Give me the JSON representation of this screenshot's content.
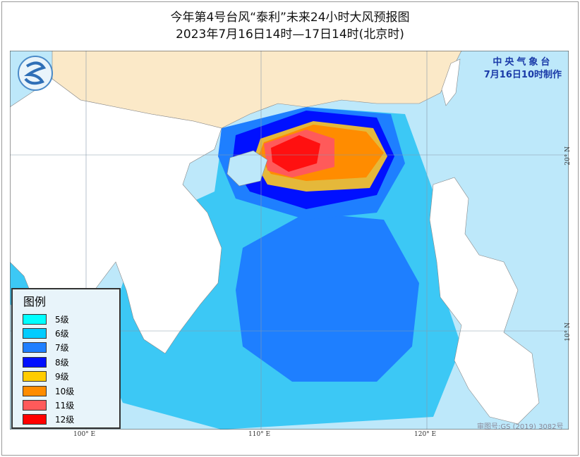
{
  "title": "今年第4号台风“泰利”未来24小时大风预报图",
  "subtitle": "2023年7月16日14时—17日14时(北京时)",
  "agency": {
    "name": "中央气象台",
    "issued": "7月16日10时制作"
  },
  "legend": {
    "title": "图例",
    "items": [
      {
        "label": "5级",
        "color": "#00ffff"
      },
      {
        "label": "6级",
        "color": "#00ccff"
      },
      {
        "label": "7级",
        "color": "#1e7fff"
      },
      {
        "label": "8级",
        "color": "#0010ff"
      },
      {
        "label": "9级",
        "color": "#ffcc00"
      },
      {
        "label": "10级",
        "color": "#ff8c00"
      },
      {
        "label": "11级",
        "color": "#ff5a5a"
      },
      {
        "label": "12级",
        "color": "#ff0000"
      }
    ]
  },
  "ticks": {
    "lon": [
      "100° E",
      "110° E",
      "120° E"
    ],
    "lat": [
      "20° N",
      "10° N"
    ]
  },
  "review_number": "审图号:GS (2019) 3082号",
  "colors": {
    "sea": "#bde8fa",
    "land": "#fff",
    "china": "#fbe9c8"
  }
}
